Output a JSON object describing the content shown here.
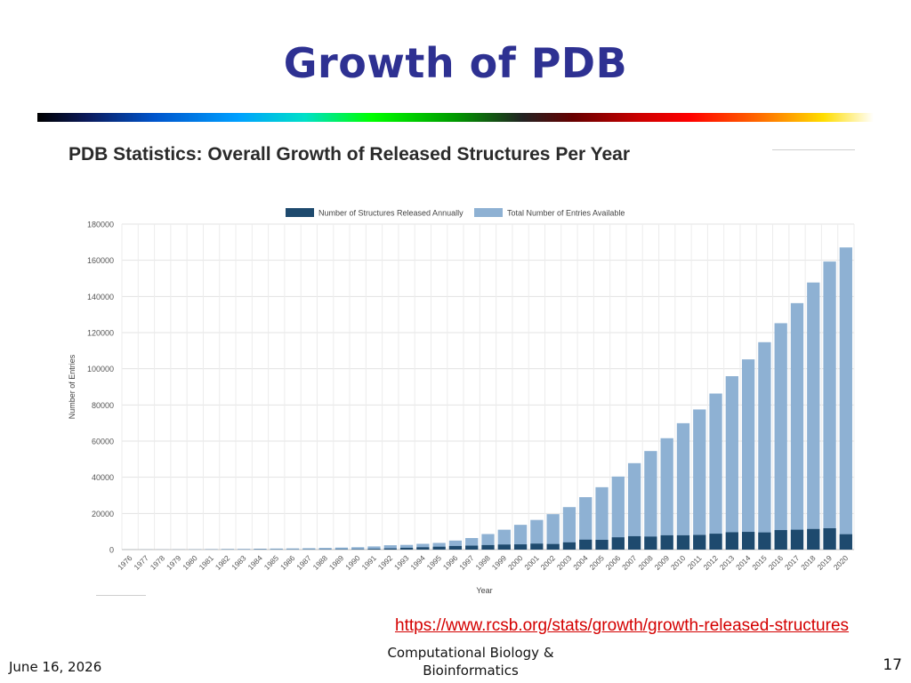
{
  "slide": {
    "title": "Growth of PDB",
    "source_url": "https://www.rcsb.org/stats/growth/growth-released-structures",
    "date": "June 16, 2026",
    "course_line1": "Computational Biology &",
    "course_line2": "Bioinformatics",
    "page_number": "17"
  },
  "colors": {
    "title": "#2e3192",
    "annual": "#1e4a6e",
    "total": "#8eb1d3",
    "link": "#d40000"
  },
  "chart_data": {
    "type": "bar",
    "title": "PDB Statistics: Overall Growth of Released Structures Per Year",
    "xlabel": "Year",
    "ylabel": "Number of Entries",
    "ylim": [
      0,
      180000
    ],
    "yticks": [
      0,
      20000,
      40000,
      60000,
      80000,
      100000,
      120000,
      140000,
      160000,
      180000
    ],
    "grid": true,
    "legend_position": "top-center",
    "categories": [
      "1976",
      "1977",
      "1978",
      "1979",
      "1980",
      "1981",
      "1982",
      "1983",
      "1984",
      "1985",
      "1986",
      "1987",
      "1988",
      "1989",
      "1990",
      "1991",
      "1992",
      "1993",
      "1994",
      "1995",
      "1996",
      "1997",
      "1998",
      "1999",
      "2000",
      "2001",
      "2002",
      "2003",
      "2004",
      "2005",
      "2006",
      "2007",
      "2008",
      "2009",
      "2010",
      "2011",
      "2012",
      "2013",
      "2014",
      "2015",
      "2016",
      "2017",
      "2018",
      "2019",
      "2020"
    ],
    "series": [
      {
        "name": "Number of Structures Released Annually",
        "values": [
          13,
          23,
          14,
          28,
          40,
          78,
          108,
          66,
          118,
          84,
          82,
          113,
          152,
          190,
          212,
          433,
          663,
          1000,
          1300,
          1600,
          2000,
          2200,
          2500,
          2800,
          2900,
          3300,
          3100,
          4000,
          5500,
          5400,
          6800,
          7400,
          7200,
          7900,
          7900,
          8100,
          8800,
          9600,
          9800,
          9500,
          10800,
          11000,
          11400,
          11800,
          8500
        ]
      },
      {
        "name": "Total Number of Entries Available",
        "values": [
          13,
          36,
          50,
          78,
          118,
          196,
          304,
          370,
          488,
          572,
          654,
          767,
          919,
          1109,
          1321,
          1754,
          2417,
          2600,
          3200,
          3700,
          5000,
          6400,
          8600,
          11000,
          13700,
          16400,
          19600,
          23500,
          29000,
          34500,
          40400,
          47800,
          54500,
          61600,
          69900,
          77500,
          86300,
          95900,
          105200,
          114700,
          125200,
          136300,
          147700,
          159300,
          167100
        ]
      }
    ]
  }
}
